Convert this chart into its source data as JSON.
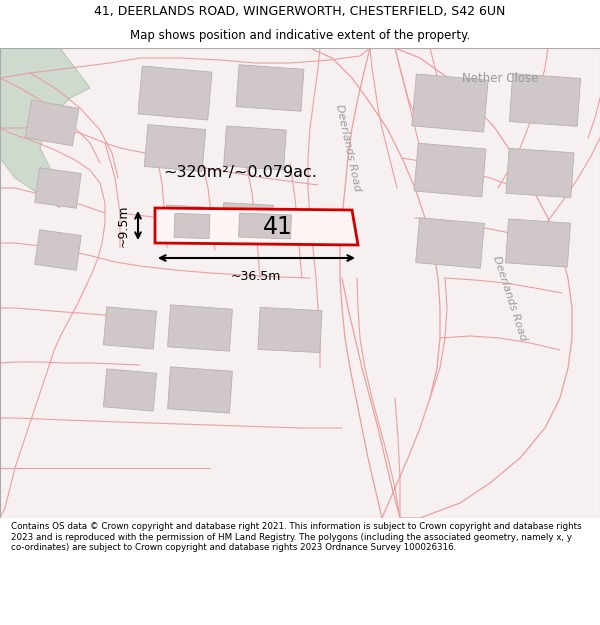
{
  "title_line1": "41, DEERLANDS ROAD, WINGERWORTH, CHESTERFIELD, S42 6UN",
  "title_line2": "Map shows position and indicative extent of the property.",
  "footer_text": "Contains OS data © Crown copyright and database right 2021. This information is subject to Crown copyright and database rights 2023 and is reproduced with the permission of HM Land Registry. The polygons (including the associated geometry, namely x, y co-ordinates) are subject to Crown copyright and database rights 2023 Ordnance Survey 100026316.",
  "map_bg": "#f7f0f0",
  "road_color": "#e8a0a0",
  "building_fill": "#d0c8c8",
  "building_edge": "#b8b0b0",
  "green_fill": "#cddacd",
  "green_edge": "#b8c8b8",
  "highlight_color": "#cc0000",
  "highlight_fill": "#fff5f5",
  "label_41": "41",
  "area_text": "~320m²/~0.079ac.",
  "dim_width": "~36.5m",
  "dim_height": "~9.5m",
  "road_label_top": "Deerlands Road",
  "road_label_bot": "Deerlands Road",
  "close_label": "Nether Close",
  "title_fontsize": 9.0,
  "subtitle_fontsize": 8.5,
  "footer_fontsize": 6.3
}
